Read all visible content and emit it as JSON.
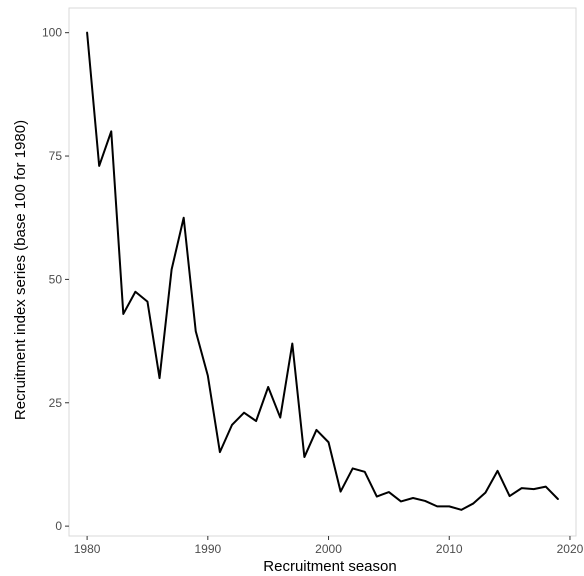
{
  "chart_data": {
    "type": "line",
    "title": "",
    "xlabel": "Recruitment season",
    "ylabel": "Recruitment index series (base 100 for 1980)",
    "xlim": [
      1978.5,
      2020.5
    ],
    "ylim": [
      -2,
      105
    ],
    "x_ticks": [
      1980,
      1990,
      2000,
      2010,
      2020
    ],
    "x_tick_labels": [
      "1980",
      "1990",
      "2000",
      "2010",
      "2020"
    ],
    "y_ticks": [
      0,
      25,
      50,
      75,
      100
    ],
    "y_tick_labels": [
      "0",
      "25",
      "50",
      "75",
      "100"
    ],
    "grid": false,
    "line_color": "#000000",
    "series": [
      {
        "x": [
          1980,
          1981,
          1982,
          1983,
          1984,
          1985,
          1986,
          1987,
          1988,
          1989,
          1990,
          1991,
          1992,
          1993,
          1994,
          1995,
          1996,
          1997,
          1998,
          1999,
          2000,
          2001,
          2002,
          2003,
          2004,
          2005,
          2006,
          2007,
          2008,
          2009,
          2010,
          2011,
          2012,
          2013,
          2014,
          2015,
          2016,
          2017,
          2018,
          2019
        ],
        "values": [
          100,
          73,
          80,
          43,
          47.5,
          45.5,
          30,
          52,
          62.5,
          39.5,
          30.5,
          15,
          20.5,
          23,
          21.3,
          28.2,
          22,
          37,
          14,
          19.5,
          17,
          7,
          11.7,
          11,
          6,
          6.9,
          5,
          5.7,
          5.1,
          4,
          4,
          3.3,
          4.6,
          6.8,
          11.2,
          6.1,
          7.7,
          7.5,
          8,
          5.5
        ]
      }
    ]
  }
}
